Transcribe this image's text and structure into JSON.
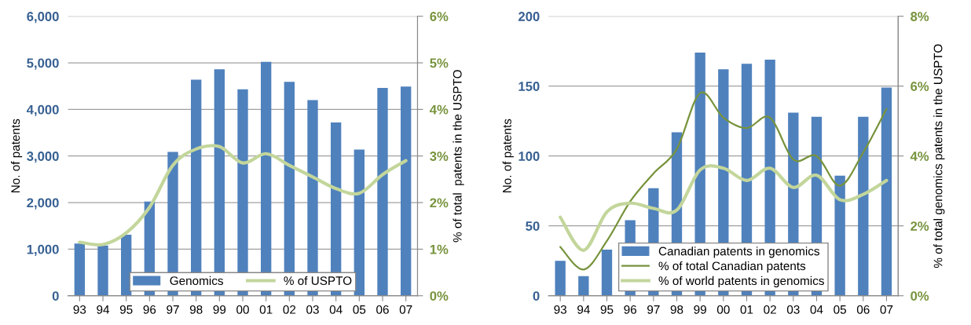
{
  "chart_data": [
    {
      "type": "bar",
      "ylabel": "No. of patents",
      "y2label": "% of total  patents in the USPTO",
      "categories": [
        "93",
        "94",
        "95",
        "96",
        "97",
        "98",
        "99",
        "00",
        "01",
        "02",
        "03",
        "04",
        "05",
        "06",
        "07"
      ],
      "series": [
        {
          "name": "Genomics",
          "color": "#4f81bd",
          "values": [
            1120,
            1080,
            1310,
            2020,
            3090,
            4640,
            4860,
            4430,
            5020,
            4590,
            4200,
            3720,
            3140,
            4460,
            4490
          ]
        },
        {
          "name": "% of USPTO",
          "type": "line",
          "axis": "y2",
          "color": "#c3d69b",
          "values": [
            1.15,
            1.1,
            1.35,
            1.9,
            2.8,
            3.15,
            3.2,
            2.85,
            3.05,
            2.8,
            2.55,
            2.3,
            2.2,
            2.6,
            2.9
          ]
        }
      ],
      "ylim": [
        0,
        6000
      ],
      "yticks": [
        {
          "value": 0,
          "label": "0"
        },
        {
          "value": 1000,
          "label": "1,000"
        },
        {
          "value": 2000,
          "label": "2,000"
        },
        {
          "value": 3000,
          "label": "3,000"
        },
        {
          "value": 4000,
          "label": "4,000"
        },
        {
          "value": 5000,
          "label": "5,000"
        },
        {
          "value": 6000,
          "label": "6,000"
        }
      ],
      "y2lim": [
        0,
        6
      ],
      "y2ticks": [
        {
          "value": 0,
          "label": "0%"
        },
        {
          "value": 1,
          "label": "1%"
        },
        {
          "value": 2,
          "label": "2%"
        },
        {
          "value": 3,
          "label": "3%"
        },
        {
          "value": 4,
          "label": "4%"
        },
        {
          "value": 5,
          "label": "5%"
        },
        {
          "value": 6,
          "label": "6%"
        }
      ],
      "grid": "y",
      "legend": "bottom",
      "line_style": "solid"
    },
    {
      "type": "bar",
      "ylabel": "No. of patents",
      "y2label": "% of total genomics patents in the USPTO",
      "categories": [
        "93",
        "94",
        "95",
        "96",
        "97",
        "98",
        "99",
        "00",
        "01",
        "02",
        "03",
        "04",
        "05",
        "06",
        "07"
      ],
      "series": [
        {
          "name": "Canadian patents in genomics",
          "color": "#4f81bd",
          "values": [
            25,
            14,
            33,
            54,
            77,
            117,
            174,
            162,
            166,
            169,
            131,
            128,
            86,
            128,
            149
          ]
        },
        {
          "name": "% of total Canadian patents",
          "type": "line",
          "axis": "y2",
          "color": "#77933c",
          "values": [
            1.4,
            0.75,
            1.57,
            2.7,
            3.5,
            4.2,
            5.8,
            5.1,
            4.8,
            5.1,
            3.9,
            4.0,
            3.15,
            4.1,
            5.35
          ]
        },
        {
          "name": "% of world patents in genomics",
          "type": "line",
          "axis": "y2",
          "color": "#c3d69b",
          "values": [
            2.25,
            1.3,
            2.4,
            2.65,
            2.5,
            2.45,
            3.6,
            3.65,
            3.3,
            3.65,
            3.1,
            3.45,
            2.75,
            2.9,
            3.3
          ]
        }
      ],
      "ylim": [
        0,
        200
      ],
      "yticks": [
        0,
        50,
        100,
        150,
        200
      ],
      "y2lim": [
        0,
        8
      ],
      "y2ticks": [
        {
          "value": 0,
          "label": "0%"
        },
        {
          "value": 2,
          "label": "2%"
        },
        {
          "value": 4,
          "label": "4%"
        },
        {
          "value": 6,
          "label": "6%"
        },
        {
          "value": 8,
          "label": "8%"
        }
      ],
      "grid": "y",
      "legend": "bottom",
      "line_style": "solid"
    }
  ]
}
